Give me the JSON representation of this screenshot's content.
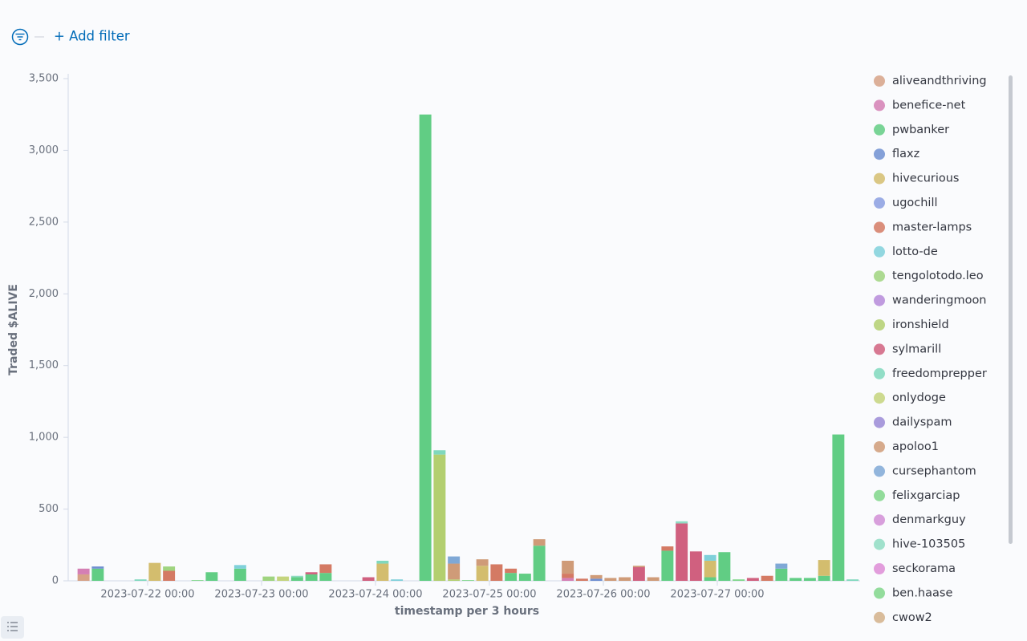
{
  "filter_bar": {
    "add_filter": "+ Add filter"
  },
  "chart_data": {
    "type": "stacked-bar",
    "y_label": "Traded $ALIVE",
    "x_label": "timestamp per 3 hours",
    "xlim": [
      "2023-07-21 09:00",
      "2023-07-28 06:00"
    ],
    "xticks": [
      "2023-07-22 00:00",
      "2023-07-23 00:00",
      "2023-07-24 00:00",
      "2023-07-25 00:00",
      "2023-07-26 00:00",
      "2023-07-27 00:00"
    ],
    "ylim": [
      0,
      3500
    ],
    "yticks": [
      0,
      500,
      {
        "value": 1000,
        "label": "1,000"
      },
      {
        "value": 1500,
        "label": "1,500"
      },
      {
        "value": 2000,
        "label": "2,000"
      },
      {
        "value": 2500,
        "label": "2,500"
      },
      {
        "value": 3000,
        "label": "3,000"
      },
      {
        "value": 3500,
        "label": "3,500"
      }
    ],
    "grid": false,
    "legend": "right",
    "series": [
      {
        "name": "aliveandthriving",
        "color": "#d6a287",
        "x": [
          "2023-07-21 09:00"
        ],
        "values": [
          45
        ]
      },
      {
        "name": "benefice-net",
        "color": "#d47fb4",
        "x": [
          "2023-07-21 09:00",
          "2023-07-25 15:00"
        ],
        "values": [
          40,
          20
        ]
      },
      {
        "name": "pwbanker",
        "color": "#61cd84",
        "x": [
          "2023-07-21 12:00",
          "2023-07-22 12:00",
          "2023-07-22 18:00",
          "2023-07-23 06:00",
          "2023-07-23 09:00",
          "2023-07-23 12:00",
          "2023-07-24 09:00",
          "2023-07-25 03:00",
          "2023-07-25 06:00",
          "2023-07-25 09:00",
          "2023-07-26 12:00",
          "2023-07-26 21:00",
          "2023-07-27 00:00",
          "2023-07-27 12:00",
          "2023-07-27 15:00",
          "2023-07-27 18:00",
          "2023-07-27 21:00",
          "2023-07-28 00:00"
        ],
        "values": [
          85,
          60,
          85,
          25,
          45,
          55,
          3250,
          55,
          50,
          245,
          210,
          25,
          200,
          85,
          20,
          20,
          35,
          1020
        ]
      },
      {
        "name": "flaxz",
        "color": "#6f8fd1",
        "x": [
          "2023-07-21 12:00",
          "2023-07-25 21:00"
        ],
        "values": [
          15,
          15
        ]
      },
      {
        "name": "hivecurious",
        "color": "#d3bd6e",
        "x": [
          "2023-07-22 00:00",
          "2023-07-24 00:00",
          "2023-07-24 21:00",
          "2023-07-26 21:00",
          "2023-07-27 21:00"
        ],
        "values": [
          125,
          120,
          105,
          115,
          110
        ]
      },
      {
        "name": "ugochill",
        "color": "#8a9ee0",
        "x": [],
        "values": []
      },
      {
        "name": "master-lamps",
        "color": "#d47a64",
        "x": [
          "2023-07-22 03:00",
          "2023-07-23 12:00",
          "2023-07-25 00:00",
          "2023-07-25 03:00",
          "2023-07-25 15:00",
          "2023-07-25 18:00",
          "2023-07-26 12:00",
          "2023-07-27 09:00"
        ],
        "values": [
          70,
          60,
          115,
          30,
          30,
          15,
          30,
          35
        ]
      },
      {
        "name": "lotto-de",
        "color": "#7fd0da",
        "x": [
          "2023-07-22 18:00",
          "2023-07-24 03:00",
          "2023-07-26 21:00"
        ],
        "values": [
          25,
          10,
          40
        ]
      },
      {
        "name": "tengolotodo.leo",
        "color": "#9fd47f",
        "x": [
          "2023-07-22 03:00",
          "2023-07-23 00:00"
        ],
        "values": [
          30,
          30
        ]
      },
      {
        "name": "wanderingmoon",
        "color": "#b58ad9",
        "x": [],
        "values": []
      },
      {
        "name": "ironshield",
        "color": "#b3cf70",
        "x": [
          "2023-07-24 12:00",
          "2023-07-24 15:00"
        ],
        "values": [
          880,
          10
        ]
      },
      {
        "name": "sylmarill",
        "color": "#d0607f",
        "x": [
          "2023-07-23 09:00",
          "2023-07-23 21:00",
          "2023-07-26 06:00",
          "2023-07-26 15:00",
          "2023-07-26 18:00",
          "2023-07-27 06:00"
        ],
        "values": [
          15,
          25,
          95,
          400,
          205,
          20
        ]
      },
      {
        "name": "freedomprepper",
        "color": "#7fd8bd",
        "x": [
          "2023-07-21 21:00",
          "2023-07-24 00:00",
          "2023-07-24 12:00",
          "2023-07-28 03:00"
        ],
        "values": [
          10,
          20,
          30,
          10
        ]
      },
      {
        "name": "onlydoge",
        "color": "#c4d47d",
        "x": [
          "2023-07-23 03:00"
        ],
        "values": [
          30
        ]
      },
      {
        "name": "dailyspam",
        "color": "#9a8ad6",
        "x": [],
        "values": []
      },
      {
        "name": "apoloo1",
        "color": "#cf9b78",
        "x": [
          "2023-07-24 15:00",
          "2023-07-24 21:00",
          "2023-07-25 09:00",
          "2023-07-25 15:00",
          "2023-07-25 21:00",
          "2023-07-26 00:00",
          "2023-07-26 03:00",
          "2023-07-26 06:00",
          "2023-07-26 09:00"
        ],
        "values": [
          110,
          45,
          45,
          90,
          25,
          20,
          25,
          10,
          25
        ]
      },
      {
        "name": "cursephantom",
        "color": "#7fa8d6",
        "x": [
          "2023-07-24 15:00",
          "2023-07-27 12:00"
        ],
        "values": [
          50,
          35
        ]
      },
      {
        "name": "felixgarciap",
        "color": "#7fd68a",
        "x": [
          "2023-07-22 09:00",
          "2023-07-24 18:00",
          "2023-07-27 03:00"
        ],
        "values": [
          5,
          5,
          10
        ]
      },
      {
        "name": "denmarkguy",
        "color": "#d18ed6",
        "x": [],
        "values": []
      },
      {
        "name": "hive-103505",
        "color": "#8fdcc3",
        "x": [
          "2023-07-23 06:00",
          "2023-07-26 15:00"
        ],
        "values": [
          10,
          15
        ]
      },
      {
        "name": "seckorama",
        "color": "#dd8cd6",
        "x": [],
        "values": []
      },
      {
        "name": "ben.haase",
        "color": "#80d68b",
        "x": [],
        "values": []
      },
      {
        "name": "cwow2",
        "color": "#d2b08a",
        "x": [],
        "values": []
      }
    ]
  }
}
